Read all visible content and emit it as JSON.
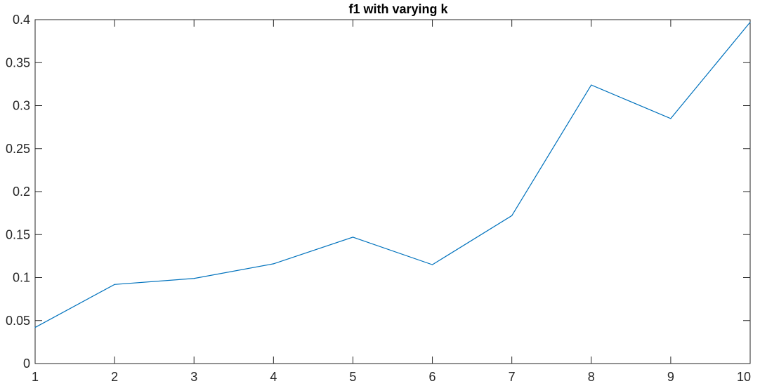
{
  "chart_data": {
    "type": "line",
    "title": "f1 with varying k",
    "xlabel": "",
    "ylabel": "",
    "xlim": [
      1,
      10
    ],
    "ylim": [
      0,
      0.4
    ],
    "x_ticks": [
      "1",
      "2",
      "3",
      "4",
      "5",
      "6",
      "7",
      "8",
      "9",
      "10"
    ],
    "y_ticks": [
      "0",
      "0.05",
      "0.1",
      "0.15",
      "0.2",
      "0.25",
      "0.3",
      "0.35",
      "0.4"
    ],
    "grid": false,
    "legend": "none",
    "series": [
      {
        "color": "#0072BD",
        "x": [
          1,
          2,
          3,
          4,
          5,
          6,
          7,
          8,
          9,
          10
        ],
        "y": [
          0.042,
          0.092,
          0.099,
          0.116,
          0.147,
          0.115,
          0.172,
          0.324,
          0.285,
          0.397
        ]
      }
    ]
  }
}
